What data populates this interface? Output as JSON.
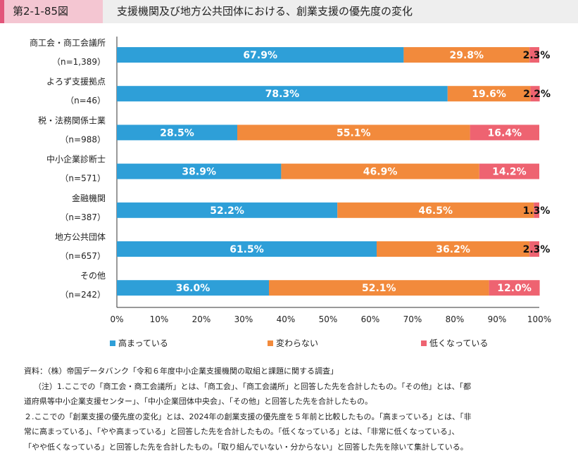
{
  "header": {
    "figure_number": "第2-1-85図",
    "title": "支援機関及び地方公共団体における、創業支援の優先度の変化"
  },
  "colors": {
    "increased": "#2e9fd8",
    "unchanged": "#f28a3c",
    "decreased": "#ee6371",
    "header_bg": "#eeeeee",
    "figno_bg": "#f4c6d2",
    "figno_accent": "#e2557a"
  },
  "chart_data": {
    "type": "bar",
    "orientation": "horizontal",
    "stacked": true,
    "categories": [
      {
        "name": "商工会・商工会議所",
        "n": "（n=1,389）"
      },
      {
        "name": "よろず支援拠点",
        "n": "（n=46）"
      },
      {
        "name": "税・法務関係士業",
        "n": "（n=988）"
      },
      {
        "name": "中小企業診断士",
        "n": "（n=571）"
      },
      {
        "name": "金融機関",
        "n": "（n=387）"
      },
      {
        "name": "地方公共団体",
        "n": "（n=657）"
      },
      {
        "name": "その他",
        "n": "（n=242）"
      }
    ],
    "series": [
      {
        "name": "高まっている",
        "color": "#2e9fd8",
        "values": [
          67.9,
          78.3,
          28.5,
          38.9,
          52.2,
          61.5,
          36.0
        ]
      },
      {
        "name": "変わらない",
        "color": "#f28a3c",
        "values": [
          29.8,
          19.6,
          55.1,
          46.9,
          46.5,
          36.2,
          52.1
        ]
      },
      {
        "name": "低くなっている",
        "color": "#ee6371",
        "values": [
          2.3,
          2.2,
          16.4,
          14.2,
          1.3,
          2.3,
          12.0
        ]
      }
    ],
    "xlim": [
      0,
      100
    ],
    "x_ticks": [
      "0%",
      "10%",
      "20%",
      "30%",
      "40%",
      "50%",
      "60%",
      "70%",
      "80%",
      "90%",
      "100%"
    ],
    "legend_position": "bottom",
    "grid": false
  },
  "notes": [
    "資料：（株）帝国データバンク「令和６年度中小企業支援機関の取組と課題に関する調査」",
    "（注）1.ここでの「商工会・商工会議所」とは、「商工会」、「商工会議所」と回答した先を合計したもの。「その他」とは、「都",
    "道府県等中小企業支援センター」、「中小企業団体中央会」、「その他」と回答した先を合計したもの。",
    "２.ここでの「創業支援の優先度の変化」とは、2024年の創業支援の優先度を５年前と比較したもの。「高まっている」とは、「非",
    "常に高まっている」、「やや高まっている」と回答した先を合計したもの。「低くなっている」とは、「非常に低くなっている」、",
    "「やや低くなっている」と回答した先を合計したもの。「取り組んでいない・分からない」と回答した先を除いて集計している。"
  ]
}
